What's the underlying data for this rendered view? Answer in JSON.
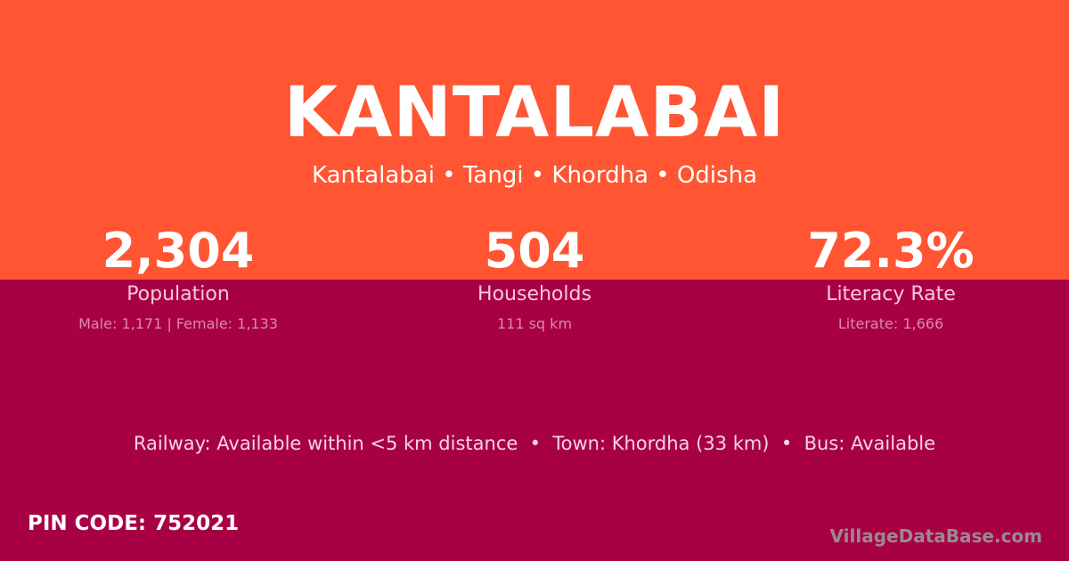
{
  "header": {
    "title": "KANTALABAI",
    "breadcrumb": "Kantalabai • Tangi • Khordha • Odisha"
  },
  "stats": [
    {
      "value": "2,304",
      "label": "Population",
      "detail": "Male: 1,171 | Female: 1,133"
    },
    {
      "value": "504",
      "label": "Households",
      "detail": "111 sq km"
    },
    {
      "value": "72.3%",
      "label": "Literacy Rate",
      "detail": "Literate: 1,666"
    }
  ],
  "facts": "Railway: Available within <5 km distance  •  Town: Khordha (33 km)  •  Bus: Available",
  "footer": {
    "pin": "PIN CODE: 752021",
    "brand": "VillageDataBase.com"
  },
  "colors": {
    "top": "#FF5532",
    "bottom": "#A80044"
  }
}
